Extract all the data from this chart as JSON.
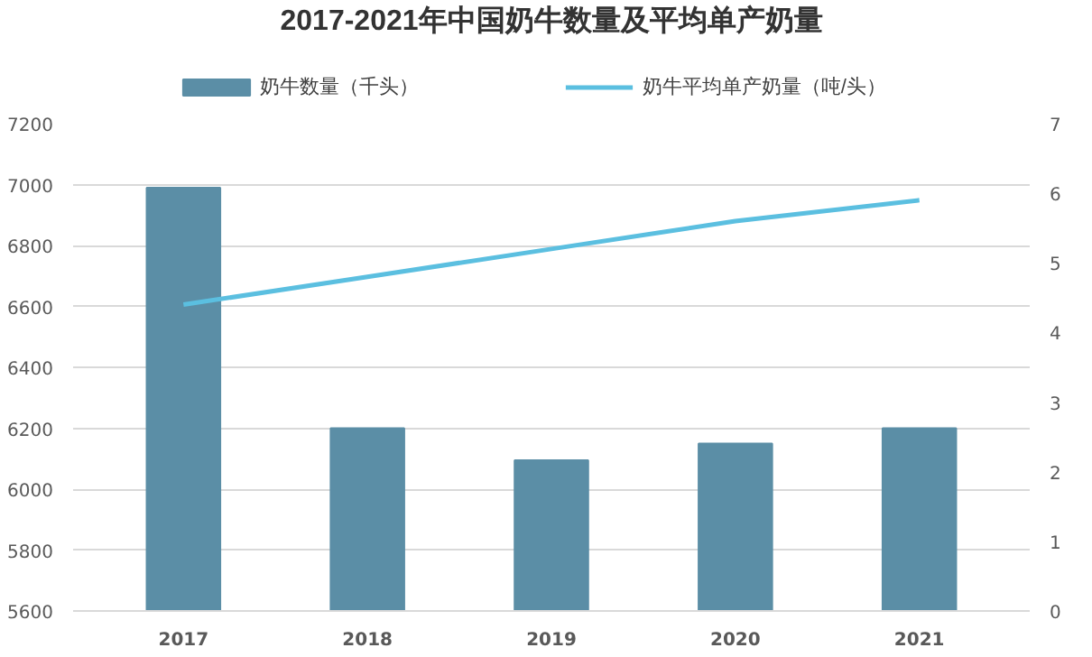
{
  "chart_data": {
    "type": "bar",
    "title": "2017-2021年中国奶牛数量及平均单产奶量",
    "categories": [
      "2017",
      "2018",
      "2019",
      "2020",
      "2021"
    ],
    "series": [
      {
        "name": "奶牛数量（千头）",
        "color": "#5b8ea6",
        "values": [
          6990,
          6200,
          6095,
          6150,
          6200
        ]
      },
      {
        "name": "奶牛平均单产奶量（吨/头）",
        "type": "line",
        "axis": "y2",
        "color": "#5bbfe0",
        "values": [
          4.4,
          4.8,
          5.2,
          5.6,
          5.9
        ]
      }
    ],
    "ylim": [
      5600,
      7200
    ],
    "yticks": [
      5600,
      5800,
      6000,
      6200,
      6400,
      6600,
      6800,
      7000,
      7200
    ],
    "y2lim": [
      0,
      7
    ],
    "y2ticks": [
      0,
      1,
      2,
      3,
      4,
      5,
      6,
      7
    ],
    "grid": "y",
    "legend": "top"
  }
}
